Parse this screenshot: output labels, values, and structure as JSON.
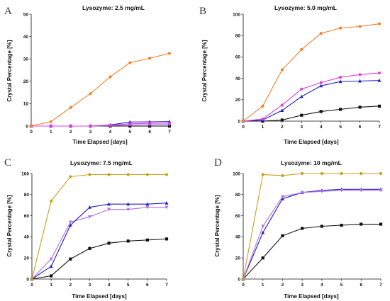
{
  "chart_data": [
    {
      "panel_label": "A",
      "type": "line",
      "title": "Lysozyme: 2.5 mg/mL",
      "xlabel": "Time Elapsed [days]",
      "ylabel": "Crystal Percentage [%]",
      "xlim": [
        0,
        7
      ],
      "ylim": [
        0,
        50
      ],
      "xticks": [
        "0",
        "1",
        "2",
        "3",
        "4",
        "5",
        "6",
        "7"
      ],
      "yticks": [
        "0",
        "10",
        "20",
        "30",
        "40",
        "50"
      ],
      "x": [
        0,
        1,
        2,
        3,
        4,
        5,
        6,
        7
      ],
      "series": [
        {
          "color": "#f58231",
          "marker": "circle",
          "values": [
            0,
            2,
            8.3,
            14.5,
            22,
            28.3,
            30.3,
            32.5
          ]
        },
        {
          "color": "#e040e0",
          "marker": "circle",
          "values": [
            0,
            0,
            0,
            0,
            0.3,
            1,
            1.2,
            1.3
          ]
        },
        {
          "color": "#2020c0",
          "marker": "triangle",
          "values": [
            0,
            0,
            0,
            0,
            0.5,
            1.8,
            1.9,
            2.0
          ]
        },
        {
          "color": "#b070f0",
          "marker": "triangle-down",
          "values": [
            0,
            0,
            0,
            0,
            0.2,
            0.5,
            0.6,
            0.7
          ]
        },
        {
          "color": "#111111",
          "marker": "square",
          "values": [
            0,
            0,
            0,
            0,
            0,
            0,
            0,
            0
          ]
        }
      ]
    },
    {
      "panel_label": "B",
      "type": "line",
      "title": "Lysozyme: 5.0 mg/mL",
      "xlabel": "Time Elapsed [days]",
      "ylabel": "Crystal Percentage [%]",
      "xlim": [
        0,
        7
      ],
      "ylim": [
        0,
        100
      ],
      "xticks": [
        "0",
        "1",
        "2",
        "3",
        "4",
        "5",
        "6",
        "7"
      ],
      "yticks": [
        "0",
        "20",
        "40",
        "60",
        "80",
        "100"
      ],
      "x": [
        0,
        1,
        2,
        3,
        4,
        5,
        6,
        7
      ],
      "series": [
        {
          "color": "#f58231",
          "marker": "circle",
          "values": [
            0,
            14,
            48,
            67,
            82,
            87,
            88.5,
            91
          ]
        },
        {
          "color": "#e040e0",
          "marker": "circle",
          "values": [
            0,
            2,
            15,
            30,
            36,
            41,
            43.5,
            45
          ]
        },
        {
          "color": "#2020c0",
          "marker": "triangle",
          "values": [
            0,
            1,
            10,
            23,
            33,
            37,
            37.5,
            38
          ]
        },
        {
          "color": "#111111",
          "marker": "square",
          "values": [
            0,
            0,
            1,
            5.5,
            9,
            11,
            13,
            14
          ]
        }
      ]
    },
    {
      "panel_label": "C",
      "type": "line",
      "title": "Lysozyme: 7.5 mg/mL",
      "xlabel": "Time Elapsed [days]",
      "ylabel": "Crystal Percentage [%]",
      "xlim": [
        0,
        7
      ],
      "ylim": [
        0,
        100
      ],
      "xticks": [
        "0",
        "1",
        "2",
        "3",
        "4",
        "5",
        "6",
        "7"
      ],
      "yticks": [
        "0",
        "20",
        "40",
        "60",
        "80",
        "100"
      ],
      "x": [
        0,
        1,
        2,
        3,
        4,
        5,
        6,
        7
      ],
      "series": [
        {
          "color": "#c8a21e",
          "marker": "circle",
          "values": [
            0,
            74,
            97,
            99,
            99,
            99,
            99,
            99
          ]
        },
        {
          "color": "#2020c0",
          "marker": "triangle",
          "values": [
            0,
            12,
            51,
            68,
            71,
            71,
            71,
            72
          ]
        },
        {
          "color": "#b070f0",
          "marker": "triangle-down",
          "values": [
            0,
            19,
            54,
            59,
            66,
            66,
            68,
            68
          ]
        },
        {
          "color": "#111111",
          "marker": "square",
          "values": [
            0,
            3,
            19,
            29,
            34,
            36,
            37,
            38
          ]
        }
      ]
    },
    {
      "panel_label": "D",
      "type": "line",
      "title": "Lysozyme: 10 mg/mL",
      "xlabel": "Time Elapsed [days]",
      "ylabel": "Crystal Percentage [%]",
      "xlim": [
        0,
        7
      ],
      "ylim": [
        0,
        100
      ],
      "xticks": [
        "0",
        "1",
        "2",
        "3",
        "4",
        "5",
        "6",
        "7"
      ],
      "yticks": [
        "0",
        "20",
        "40",
        "60",
        "80",
        "100"
      ],
      "x": [
        0,
        1,
        2,
        3,
        4,
        5,
        6,
        7
      ],
      "series": [
        {
          "color": "#c8a21e",
          "marker": "circle",
          "values": [
            0,
            99,
            98,
            100,
            100,
            100,
            100,
            100
          ]
        },
        {
          "color": "#b070f0",
          "marker": "triangle-down",
          "values": [
            0,
            50,
            78,
            82,
            83,
            84,
            84,
            84
          ]
        },
        {
          "color": "#2020c0",
          "marker": "triangle",
          "values": [
            0,
            44,
            76,
            82,
            84,
            85,
            85,
            85
          ]
        },
        {
          "color": "#111111",
          "marker": "square",
          "values": [
            0,
            20,
            41,
            48,
            50,
            51,
            52,
            52
          ]
        }
      ]
    }
  ]
}
